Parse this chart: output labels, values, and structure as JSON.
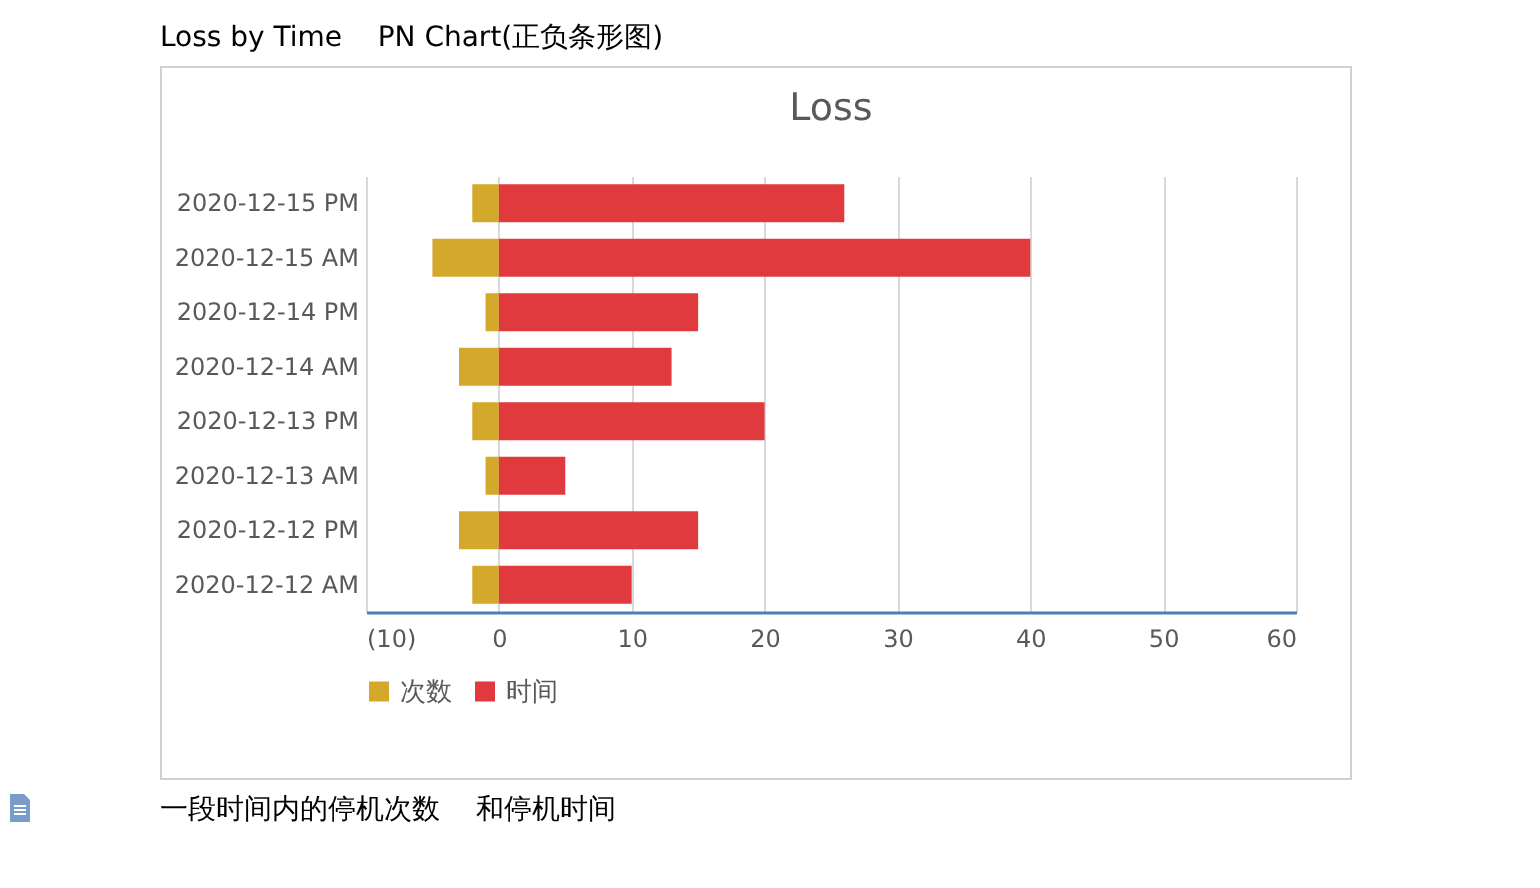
{
  "chart_data": {
    "type": "bar",
    "orientation": "horizontal",
    "stacked": true,
    "title": "Loss",
    "categories": [
      "2020-12-15 PM",
      "2020-12-15 AM",
      "2020-12-14 PM",
      "2020-12-14 AM",
      "2020-12-13 PM",
      "2020-12-13 AM",
      "2020-12-12 PM",
      "2020-12-12 AM"
    ],
    "series": [
      {
        "name": "次数",
        "color": "#d4a82a",
        "values": [
          -2,
          -5,
          -1,
          -3,
          -2,
          -1,
          -3,
          -2
        ]
      },
      {
        "name": "时间",
        "color": "#e0393e",
        "values": [
          26,
          40,
          15,
          13,
          20,
          5,
          15,
          10
        ]
      }
    ],
    "xlim": [
      -10,
      60
    ],
    "xticks": [
      {
        "value": -10,
        "label": "(10)"
      },
      0,
      10,
      20,
      30,
      40,
      50,
      60
    ],
    "grid": "x",
    "legend": "bottom",
    "annotations": [
      "Loss by Time    PN Chart(正负条形图)",
      "一段时间内的停机次数    和停机时间"
    ]
  }
}
